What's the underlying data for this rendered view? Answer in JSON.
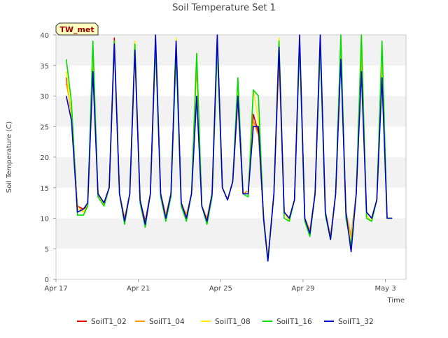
{
  "chart_data": {
    "type": "line",
    "title": "Soil Temperature Set 1",
    "xlabel": "Time",
    "ylabel": "Soil Temperature (C)",
    "annotation": "TW_met",
    "xlim": [
      "2023-04-17",
      "2023-05-04"
    ],
    "ylim": [
      0,
      40
    ],
    "x_ticks": [
      {
        "date": "2023-04-17",
        "label": "Apr 17"
      },
      {
        "date": "2023-04-21",
        "label": "Apr 21"
      },
      {
        "date": "2023-04-25",
        "label": "Apr 25"
      },
      {
        "date": "2023-04-29",
        "label": "Apr 29"
      },
      {
        "date": "2023-05-03",
        "label": "May 3"
      }
    ],
    "y_ticks": [
      0,
      5,
      10,
      15,
      20,
      25,
      30,
      35,
      40
    ],
    "grid": "horizontal bands",
    "legend_position": "bottom",
    "x": [
      "2023-04-17T12:00",
      "2023-04-17T18:00",
      "2023-04-18T01:00",
      "2023-04-18T08:00",
      "2023-04-18T13:00",
      "2023-04-18T19:00",
      "2023-04-19T01:00",
      "2023-04-19T08:00",
      "2023-04-19T14:00",
      "2023-04-19T20:00",
      "2023-04-20T02:00",
      "2023-04-20T08:00",
      "2023-04-20T14:00",
      "2023-04-20T20:00",
      "2023-04-21T02:00",
      "2023-04-21T08:00",
      "2023-04-21T14:00",
      "2023-04-21T20:00",
      "2023-04-22T02:00",
      "2023-04-22T08:00",
      "2023-04-22T14:00",
      "2023-04-22T20:00",
      "2023-04-23T02:00",
      "2023-04-23T08:00",
      "2023-04-23T14:00",
      "2023-04-23T20:00",
      "2023-04-24T02:00",
      "2023-04-24T08:00",
      "2023-04-24T14:00",
      "2023-04-24T20:00",
      "2023-04-25T02:00",
      "2023-04-25T08:00",
      "2023-04-25T14:00",
      "2023-04-25T20:00",
      "2023-04-26T02:00",
      "2023-04-26T08:00",
      "2023-04-26T14:00",
      "2023-04-26T20:00",
      "2023-04-27T02:00",
      "2023-04-27T07:00",
      "2023-04-27T14:00",
      "2023-04-27T20:00",
      "2023-04-28T02:00",
      "2023-04-28T08:00",
      "2023-04-28T14:00",
      "2023-04-28T20:00",
      "2023-04-29T02:00",
      "2023-04-29T08:00",
      "2023-04-29T14:00",
      "2023-04-29T20:00",
      "2023-04-30T02:00",
      "2023-04-30T08:00",
      "2023-04-30T14:00",
      "2023-04-30T20:00",
      "2023-05-01T02:00",
      "2023-05-01T08:00",
      "2023-05-01T14:00",
      "2023-05-01T20:00",
      "2023-05-02T02:00",
      "2023-05-02T08:00",
      "2023-05-02T14:00",
      "2023-05-02T20:00",
      "2023-05-03T02:00",
      "2023-05-03T08:00"
    ],
    "series": [
      {
        "name": "SoilT1_02",
        "color": "#dd0000",
        "values": [
          33,
          27,
          12,
          11.5,
          12,
          36,
          14,
          12.5,
          15,
          39.5,
          14,
          10,
          14,
          38,
          13,
          9.5,
          14,
          39,
          14,
          10.5,
          14,
          39,
          12.5,
          10.5,
          14,
          36,
          12,
          10,
          14,
          39,
          15,
          13,
          16,
          30,
          14,
          14,
          27,
          24,
          10,
          3.5,
          14,
          37,
          11,
          10,
          13,
          39.5,
          10,
          8,
          14,
          39,
          11,
          7,
          14,
          38,
          11,
          7,
          14,
          38,
          11,
          10,
          13,
          35,
          10,
          10
        ]
      },
      {
        "name": "SoilT1_04",
        "color": "#ff9900",
        "values": [
          32,
          28,
          12,
          11,
          12,
          35,
          14,
          12,
          15,
          38.5,
          14,
          10,
          14,
          37,
          13,
          9,
          14,
          38,
          14,
          10.5,
          14,
          38,
          12.5,
          10.5,
          14,
          35.5,
          12,
          10,
          14,
          38,
          15,
          13,
          16,
          29,
          14,
          14.5,
          26,
          23.5,
          10,
          3.5,
          14,
          36,
          11,
          10,
          13,
          38.5,
          10,
          8,
          14,
          38,
          11,
          7,
          14,
          37,
          11,
          7,
          14,
          37,
          11,
          10,
          13,
          34,
          10,
          10
        ]
      },
      {
        "name": "SoilT1_08",
        "color": "#ffee00",
        "values": [
          34,
          27,
          11.5,
          11,
          12,
          38,
          14,
          12,
          15,
          39,
          14,
          9.5,
          14,
          39,
          13,
          9,
          14,
          38.5,
          14,
          10,
          14,
          39.5,
          12,
          10,
          14,
          37,
          12,
          9.5,
          14,
          37,
          15,
          13,
          16,
          32,
          14,
          14,
          31,
          26,
          10,
          3.5,
          14,
          39.5,
          11,
          9.5,
          13,
          39,
          10,
          7.5,
          14,
          39.5,
          11,
          6.5,
          14,
          39.5,
          10.5,
          6,
          14,
          40,
          10.5,
          9.5,
          13,
          35,
          10,
          10
        ]
      },
      {
        "name": "SoilT1_16",
        "color": "#00dd00",
        "values": [
          36,
          29,
          10.5,
          10.5,
          12,
          39,
          13.5,
          12,
          15,
          39,
          14,
          9,
          14,
          38.5,
          12.5,
          8.5,
          14,
          38.5,
          13.5,
          9.5,
          13.5,
          37,
          12,
          9.5,
          14,
          37,
          12,
          9,
          13.5,
          38,
          15,
          13,
          16,
          33,
          14,
          13.5,
          31,
          30,
          9.5,
          3,
          14,
          39,
          10,
          9.5,
          13,
          38.5,
          9.5,
          7,
          14,
          38,
          10.5,
          6.5,
          14,
          40,
          10,
          5.5,
          14,
          40,
          10,
          9.5,
          13,
          39,
          10,
          10
        ]
      },
      {
        "name": "SoilT1_32",
        "color": "#0000cc",
        "values": [
          30,
          26,
          11,
          11.5,
          12.5,
          34,
          14,
          12.5,
          15,
          38.5,
          14,
          9.5,
          14,
          37.5,
          13,
          9,
          14,
          40,
          14,
          10,
          14,
          39,
          12.5,
          10,
          14,
          30,
          12,
          9.5,
          14,
          40,
          15,
          13,
          16,
          30,
          14,
          14,
          25,
          25,
          10,
          3,
          14,
          38,
          11,
          10,
          13,
          40,
          10,
          7.5,
          14,
          40,
          11,
          6.5,
          14,
          36,
          11,
          4.5,
          14,
          34,
          11,
          10,
          13,
          33,
          10,
          10
        ]
      }
    ]
  }
}
